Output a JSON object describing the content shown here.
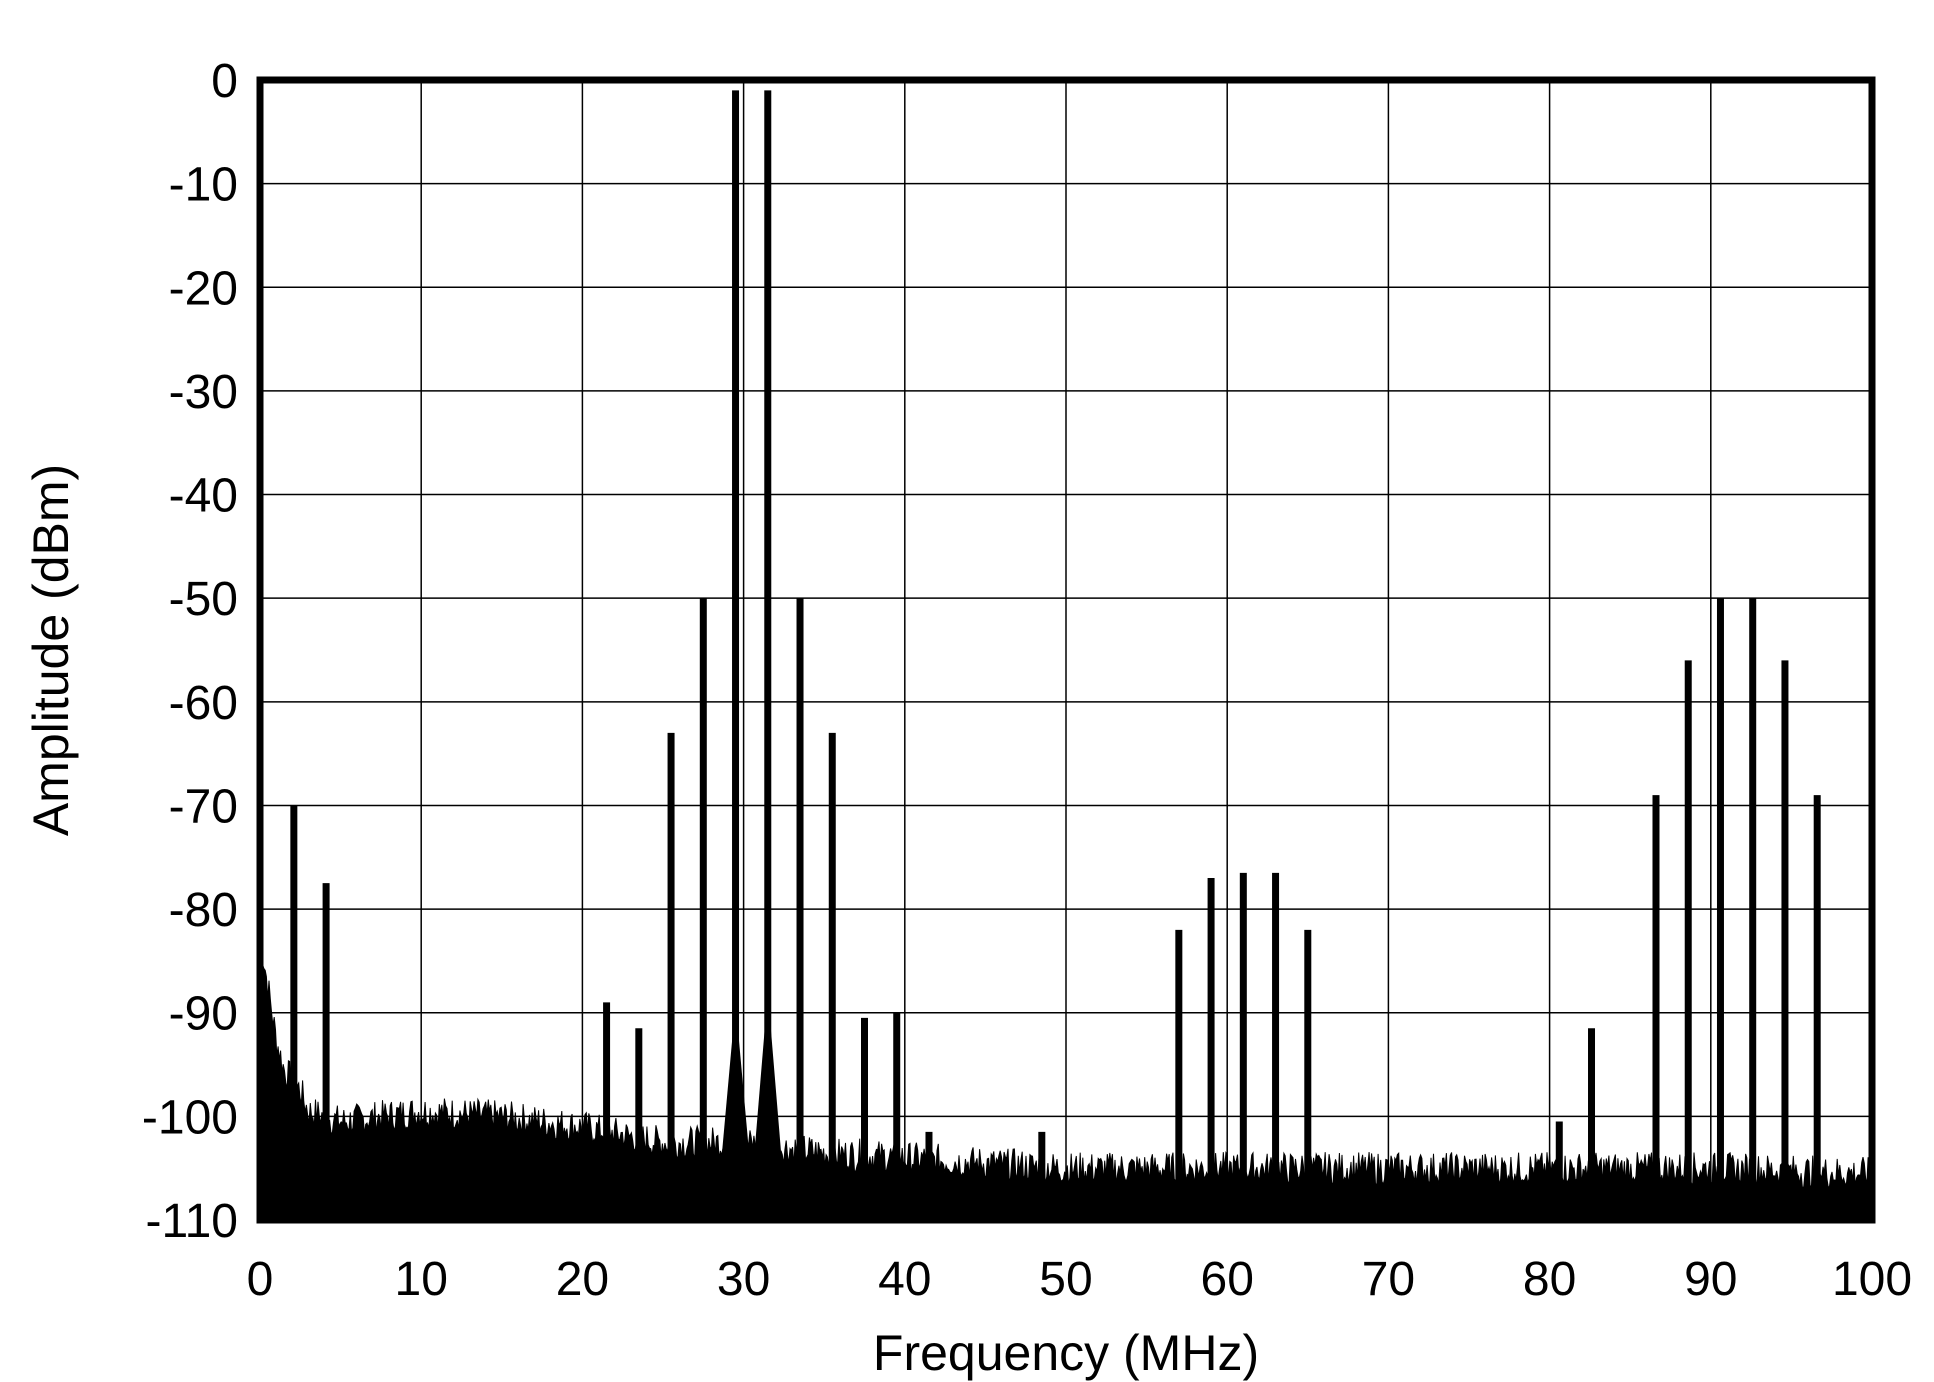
{
  "chart_data": {
    "type": "bar",
    "title": "",
    "xlabel": "Frequency (MHz)",
    "ylabel": "Amplitude (dBm)",
    "xlim": [
      0,
      100
    ],
    "ylim": [
      -110,
      0
    ],
    "x_ticks": [
      "0",
      "10",
      "20",
      "30",
      "40",
      "50",
      "60",
      "70",
      "80",
      "90",
      "100"
    ],
    "y_ticks": [
      "0",
      "-10",
      "-20",
      "-30",
      "-40",
      "-50",
      "-60",
      "-70",
      "-80",
      "-90",
      "-100",
      "-110"
    ],
    "grid": true,
    "legend": "none",
    "series": [
      {
        "spurs": [
          {
            "x": 2.1,
            "y": -70
          },
          {
            "x": 4.1,
            "y": -77.5
          },
          {
            "x": 21.5,
            "y": -89
          },
          {
            "x": 23.5,
            "y": -91.5
          },
          {
            "x": 25.5,
            "y": -63
          },
          {
            "x": 27.5,
            "y": -50
          },
          {
            "x": 29.5,
            "y": -1
          },
          {
            "x": 31.5,
            "y": -1
          },
          {
            "x": 33.5,
            "y": -50
          },
          {
            "x": 35.5,
            "y": -63
          },
          {
            "x": 37.5,
            "y": -90.5
          },
          {
            "x": 39.5,
            "y": -90
          },
          {
            "x": 41.5,
            "y": -101.5
          },
          {
            "x": 48.5,
            "y": -101.5
          },
          {
            "x": 57.0,
            "y": -82
          },
          {
            "x": 59.0,
            "y": -77
          },
          {
            "x": 61.0,
            "y": -76.5
          },
          {
            "x": 63.0,
            "y": -76.5
          },
          {
            "x": 65.0,
            "y": -82
          },
          {
            "x": 80.6,
            "y": -100.5
          },
          {
            "x": 82.6,
            "y": -91.5
          },
          {
            "x": 86.6,
            "y": -69
          },
          {
            "x": 88.6,
            "y": -56
          },
          {
            "x": 90.6,
            "y": -50
          },
          {
            "x": 92.6,
            "y": -50
          },
          {
            "x": 94.6,
            "y": -56
          },
          {
            "x": 96.6,
            "y": -69
          }
        ],
        "noise_floor": [
          {
            "x": 0,
            "y": -83
          },
          {
            "x": 0.5,
            "y": -88
          },
          {
            "x": 1,
            "y": -93
          },
          {
            "x": 1.5,
            "y": -96
          },
          {
            "x": 2.5,
            "y": -98
          },
          {
            "x": 3,
            "y": -100
          },
          {
            "x": 5,
            "y": -101
          },
          {
            "x": 10,
            "y": -100
          },
          {
            "x": 15,
            "y": -100.5
          },
          {
            "x": 20,
            "y": -101.5
          },
          {
            "x": 25,
            "y": -103
          },
          {
            "x": 30,
            "y": -103
          },
          {
            "x": 35,
            "y": -104
          },
          {
            "x": 40,
            "y": -104.5
          },
          {
            "x": 50,
            "y": -105.5
          },
          {
            "x": 60,
            "y": -105.5
          },
          {
            "x": 70,
            "y": -105.5
          },
          {
            "x": 80,
            "y": -105.5
          },
          {
            "x": 90,
            "y": -105.5
          },
          {
            "x": 100,
            "y": -106
          }
        ],
        "carrier_skirts": [
          {
            "x": 29.5,
            "y": -89
          },
          {
            "x": 31.5,
            "y": -88
          }
        ]
      }
    ]
  }
}
